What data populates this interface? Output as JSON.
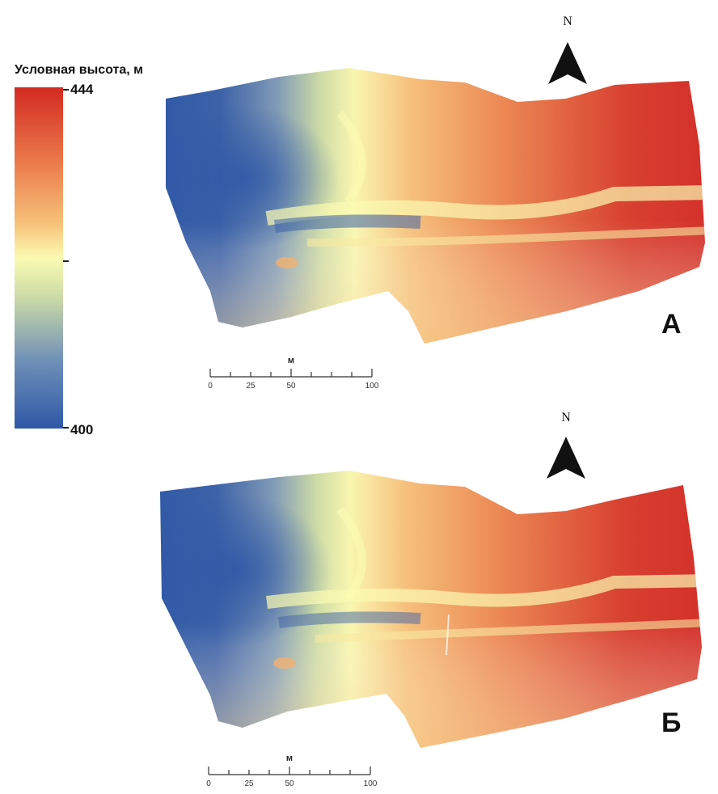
{
  "legend": {
    "title": "Условная высота, м",
    "max_label": "444",
    "min_label": "400",
    "max_value": 444,
    "min_value": 400,
    "unit": "м",
    "colors": [
      "#2f58a6",
      "#6f90b8",
      "#c9d9a6",
      "#fbfbb2",
      "#f7c27a",
      "#eb7a4a",
      "#d32a22"
    ]
  },
  "panels": [
    {
      "label": "А",
      "north": "N",
      "scale": {
        "unit": "м",
        "ticks": [
          "0",
          "25",
          "50",
          "100"
        ]
      }
    },
    {
      "label": "Б",
      "north": "N",
      "scale": {
        "unit": "м",
        "ticks": [
          "0",
          "25",
          "50",
          "100"
        ]
      }
    }
  ]
}
